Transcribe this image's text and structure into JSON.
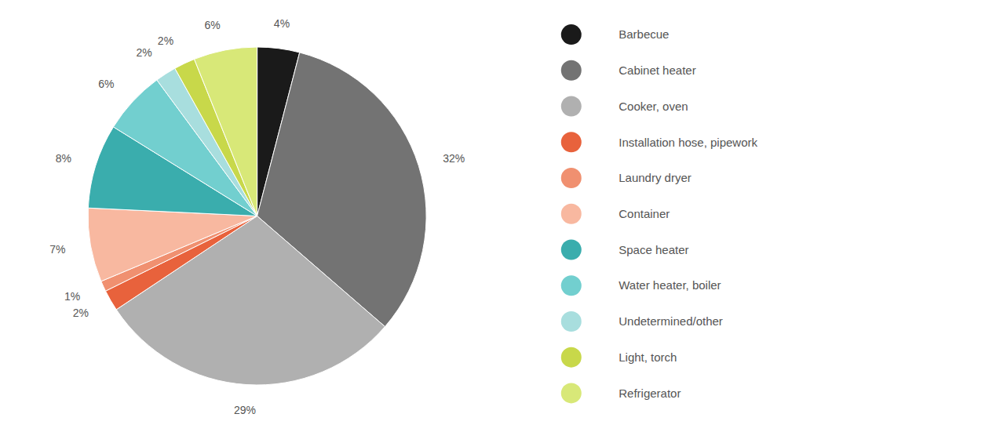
{
  "chart_data": {
    "type": "pie",
    "categories": [
      "Barbecue",
      "Cabinet heater",
      "Cooker, oven",
      "Installation hose, pipework",
      "Laundry dryer",
      "Container",
      "Space heater",
      "Water heater, boiler",
      "Undetermined/other",
      "Light, torch",
      "Refrigerator"
    ],
    "values": [
      4,
      32,
      29,
      2,
      1,
      7,
      8,
      6,
      2,
      2,
      6
    ],
    "value_labels": [
      "4%",
      "32%",
      "29%",
      "2%",
      "1%",
      "7%",
      "8%",
      "6%",
      "2%",
      "2%",
      "6%"
    ],
    "colors": [
      "#1a1a1a",
      "#737373",
      "#b0b0b0",
      "#e8623c",
      "#f09070",
      "#f8b8a0",
      "#3aadad",
      "#72cfcf",
      "#a8dede",
      "#c8d84a",
      "#d8e878"
    ],
    "data_labels": true,
    "legend": "right"
  }
}
